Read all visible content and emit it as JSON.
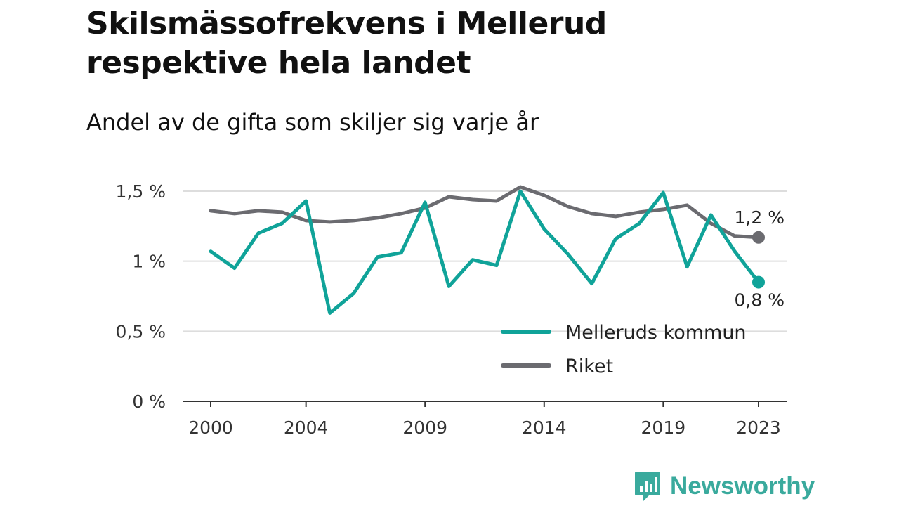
{
  "title": "Skilsmässofrekvens i Mellerud respektive hela landet",
  "subtitle": "Andel av de gifta som skiljer sig varje år",
  "brand": "Newsworthy",
  "colors": {
    "mellerud": "#10a399",
    "riket": "#6b6b70",
    "grid": "#dddddd",
    "axis": "#333333",
    "brand": "#3aaa9d"
  },
  "chart_data": {
    "type": "line",
    "x": [
      2000,
      2001,
      2002,
      2003,
      2004,
      2005,
      2006,
      2007,
      2008,
      2009,
      2010,
      2011,
      2012,
      2013,
      2014,
      2015,
      2016,
      2017,
      2018,
      2019,
      2020,
      2021,
      2022,
      2023
    ],
    "x_ticks": [
      2000,
      2004,
      2009,
      2014,
      2019,
      2023
    ],
    "x_tick_labels": [
      "2000",
      "2004",
      "2009",
      "2014",
      "2019",
      "2023"
    ],
    "ylim": [
      0,
      1.5
    ],
    "y_ticks": [
      0,
      0.5,
      1,
      1.5
    ],
    "y_tick_labels": [
      "0 %",
      "0,5 %",
      "1 %",
      "1,5 %"
    ],
    "grid": true,
    "legend_position": "bottom-right",
    "series": [
      {
        "name": "Melleruds kommun",
        "color": "#10a399",
        "values": [
          1.07,
          0.95,
          1.2,
          1.27,
          1.43,
          0.63,
          0.77,
          1.03,
          1.06,
          1.42,
          0.82,
          1.01,
          0.97,
          1.5,
          1.23,
          1.05,
          0.84,
          1.16,
          1.27,
          1.49,
          0.96,
          1.33,
          1.07,
          0.85
        ],
        "end_label": "0,8 %"
      },
      {
        "name": "Riket",
        "color": "#6b6b70",
        "values": [
          1.36,
          1.34,
          1.36,
          1.35,
          1.29,
          1.28,
          1.29,
          1.31,
          1.34,
          1.38,
          1.46,
          1.44,
          1.43,
          1.53,
          1.47,
          1.39,
          1.34,
          1.32,
          1.35,
          1.37,
          1.4,
          1.27,
          1.18,
          1.17
        ],
        "end_label": "1,2 %"
      }
    ]
  }
}
